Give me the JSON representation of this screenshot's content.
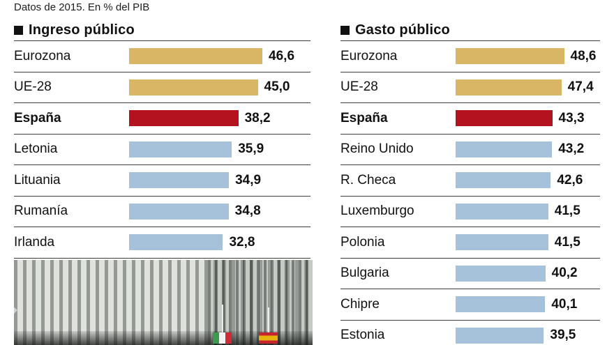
{
  "subtitle": "Datos de 2015. En % del PIB",
  "colors": {
    "gold": "#d9b566",
    "red": "#b5121f",
    "blue": "#a6c1da"
  },
  "chart_data": [
    {
      "type": "bar",
      "title": "Ingreso público",
      "unit": "% del PIB",
      "xlim": [
        0,
        50
      ],
      "rows": [
        {
          "label": "Eurozona",
          "value": 46.6,
          "display": "46,6",
          "color": "gold"
        },
        {
          "label": "UE-28",
          "value": 45.0,
          "display": "45,0",
          "color": "gold"
        },
        {
          "label": "España",
          "value": 38.2,
          "display": "38,2",
          "color": "red"
        },
        {
          "label": "Letonia",
          "value": 35.9,
          "display": "35,9",
          "color": "blue"
        },
        {
          "label": "Lituania",
          "value": 34.9,
          "display": "34,9",
          "color": "blue"
        },
        {
          "label": "Rumanía",
          "value": 34.8,
          "display": "34,8",
          "color": "blue"
        },
        {
          "label": "Irlanda",
          "value": 32.8,
          "display": "32,8",
          "color": "blue"
        }
      ]
    },
    {
      "type": "bar",
      "title": "Gasto público",
      "unit": "% del PIB",
      "xlim": [
        0,
        50
      ],
      "rows": [
        {
          "label": "Eurozona",
          "value": 48.6,
          "display": "48,6",
          "color": "gold"
        },
        {
          "label": "UE-28",
          "value": 47.4,
          "display": "47,4",
          "color": "gold"
        },
        {
          "label": "España",
          "value": 43.3,
          "display": "43,3",
          "color": "red"
        },
        {
          "label": "Reino Unido",
          "value": 43.2,
          "display": "43,2",
          "color": "blue"
        },
        {
          "label": "R. Checa",
          "value": 42.6,
          "display": "42,6",
          "color": "blue"
        },
        {
          "label": "Luxemburgo",
          "value": 41.5,
          "display": "41,5",
          "color": "blue"
        },
        {
          "label": "Polonia",
          "value": 41.5,
          "display": "41,5",
          "color": "blue"
        },
        {
          "label": "Bulgaria",
          "value": 40.2,
          "display": "40,2",
          "color": "blue"
        },
        {
          "label": "Chipre",
          "value": 40.1,
          "display": "40,1",
          "color": "blue"
        },
        {
          "label": "Estonia",
          "value": 39.5,
          "display": "39,5",
          "color": "blue"
        }
      ]
    }
  ]
}
